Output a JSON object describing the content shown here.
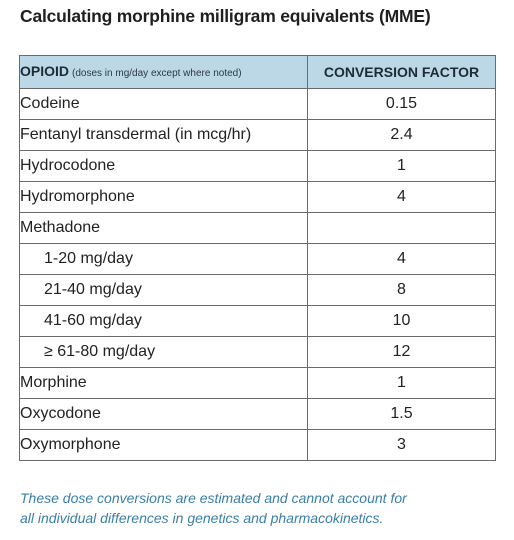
{
  "title": "Calculating morphine milligram equivalents (MME)",
  "table": {
    "header": {
      "opioid": "OPIOID",
      "opioid_note": "(doses in mg/day except where noted)",
      "factor": "CONVERSION FACTOR"
    },
    "rows": [
      {
        "opioid": "Codeine",
        "factor": "0.15",
        "indent": false
      },
      {
        "opioid": "Fentanyl transdermal (in mcg/hr)",
        "factor": "2.4",
        "indent": false
      },
      {
        "opioid": "Hydrocodone",
        "factor": "1",
        "indent": false
      },
      {
        "opioid": "Hydromorphone",
        "factor": "4",
        "indent": false
      },
      {
        "opioid": "Methadone",
        "factor": "",
        "indent": false
      },
      {
        "opioid": "1-20 mg/day",
        "factor": "4",
        "indent": true
      },
      {
        "opioid": "21-40 mg/day",
        "factor": "8",
        "indent": true
      },
      {
        "opioid": "41-60 mg/day",
        "factor": "10",
        "indent": true
      },
      {
        "opioid": "≥ 61-80 mg/day",
        "factor": "12",
        "indent": true
      },
      {
        "opioid": "Morphine",
        "factor": "1",
        "indent": false
      },
      {
        "opioid": "Oxycodone",
        "factor": "1.5",
        "indent": false
      },
      {
        "opioid": "Oxymorphone",
        "factor": "3",
        "indent": false
      }
    ]
  },
  "footnote": {
    "line1": "These dose conversions are estimated and cannot account for",
    "line2": "all individual differences in genetics and pharmacokinetics."
  },
  "colors": {
    "header_background": "#bcd8e6",
    "footnote_text": "#3a7fa6",
    "border": "#6b6b6b"
  }
}
